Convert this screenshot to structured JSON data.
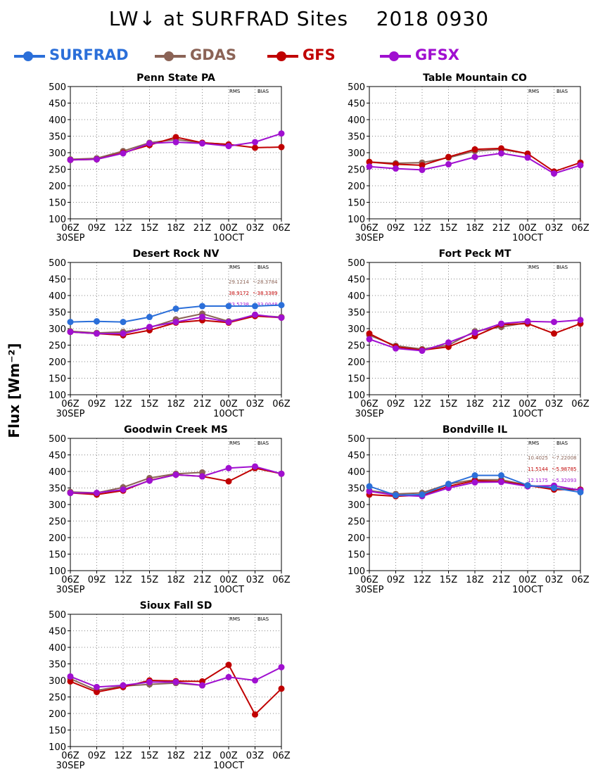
{
  "page": {
    "title": "LW↓ at SURFRAD Sites    2018 0930",
    "ylabel": "Flux [Wm⁻²]"
  },
  "legend": [
    {
      "name": "SURFRAD",
      "color": "#2b6fd9"
    },
    {
      "name": "GDAS",
      "color": "#8b6356"
    },
    {
      "name": "GFS",
      "color": "#c00000"
    },
    {
      "name": "GFSX",
      "color": "#a010d0"
    }
  ],
  "chart_data": [
    {
      "type": "line",
      "title": "Penn State PA",
      "categories": [
        "06Z\n30SEP",
        "09Z",
        "12Z",
        "15Z",
        "18Z",
        "21Z",
        "00Z\n10OCT",
        "03Z",
        "06Z"
      ],
      "ylim": [
        100,
        500
      ],
      "yticks": [
        100,
        150,
        200,
        250,
        300,
        350,
        400,
        450,
        500
      ],
      "grid": true,
      "stats_header": [
        "RMS",
        "BIAS"
      ],
      "stats": [],
      "series": [
        {
          "name": "SURFRAD",
          "values": [
            null,
            null,
            null,
            null,
            null,
            null,
            null,
            null,
            null
          ]
        },
        {
          "name": "GDAS",
          "values": [
            280,
            283,
            305,
            330,
            340,
            330,
            325,
            null,
            null
          ]
        },
        {
          "name": "GFS",
          "values": [
            278,
            280,
            300,
            323,
            347,
            330,
            325,
            315,
            317
          ]
        },
        {
          "name": "GFSX",
          "values": [
            278,
            280,
            298,
            328,
            332,
            328,
            320,
            332,
            358
          ]
        }
      ]
    },
    {
      "type": "line",
      "title": "Table Mountain CO",
      "categories": [
        "06Z\n30SEP",
        "09Z",
        "12Z",
        "15Z",
        "18Z",
        "21Z",
        "00Z\n10OCT",
        "03Z",
        "06Z"
      ],
      "ylim": [
        100,
        500
      ],
      "yticks": [
        100,
        150,
        200,
        250,
        300,
        350,
        400,
        450,
        500
      ],
      "grid": true,
      "stats_header": [
        "RMS",
        "BIAS"
      ],
      "stats": [],
      "series": [
        {
          "name": "SURFRAD",
          "values": [
            null,
            null,
            null,
            null,
            null,
            null,
            null,
            null,
            null
          ]
        },
        {
          "name": "GDAS",
          "values": [
            272,
            268,
            270,
            285,
            305,
            310,
            297,
            null,
            null
          ]
        },
        {
          "name": "GFS",
          "values": [
            272,
            265,
            262,
            287,
            310,
            313,
            297,
            243,
            270
          ]
        },
        {
          "name": "GFSX",
          "values": [
            258,
            252,
            248,
            265,
            287,
            298,
            285,
            237,
            262
          ]
        }
      ]
    },
    {
      "type": "line",
      "title": "Desert Rock NV",
      "categories": [
        "06Z\n30SEP",
        "09Z",
        "12Z",
        "15Z",
        "18Z",
        "21Z",
        "00Z\n10OCT",
        "03Z",
        "06Z"
      ],
      "ylim": [
        100,
        500
      ],
      "yticks": [
        100,
        150,
        200,
        250,
        300,
        350,
        400,
        450,
        500
      ],
      "grid": true,
      "stats_header": [
        "RMS",
        "BIAS"
      ],
      "stats": [
        {
          "series": "GDAS",
          "rms": "29.1214",
          "bias": "-28.3784"
        },
        {
          "series": "GFS",
          "rms": "38.9172",
          "bias": "-38.3389"
        },
        {
          "series": "GFSX",
          "rms": "33.5238",
          "bias": "-33.0048"
        }
      ],
      "series": [
        {
          "name": "SURFRAD",
          "values": [
            320,
            322,
            320,
            335,
            360,
            368,
            368,
            368,
            371
          ]
        },
        {
          "name": "GDAS",
          "values": [
            292,
            287,
            290,
            303,
            328,
            345,
            322,
            340,
            335
          ]
        },
        {
          "name": "GFS",
          "values": [
            290,
            285,
            280,
            295,
            318,
            325,
            318,
            338,
            333
          ]
        },
        {
          "name": "GFSX",
          "values": [
            290,
            285,
            285,
            305,
            320,
            335,
            320,
            342,
            333
          ]
        }
      ]
    },
    {
      "type": "line",
      "title": "Fort Peck MT",
      "categories": [
        "06Z\n30SEP",
        "09Z",
        "12Z",
        "15Z",
        "18Z",
        "21Z",
        "00Z\n10OCT",
        "03Z",
        "06Z"
      ],
      "ylim": [
        100,
        500
      ],
      "yticks": [
        100,
        150,
        200,
        250,
        300,
        350,
        400,
        450,
        500
      ],
      "grid": true,
      "stats_header": [
        "RMS",
        "BIAS"
      ],
      "stats": [],
      "series": [
        {
          "name": "SURFRAD",
          "values": [
            null,
            null,
            null,
            null,
            null,
            null,
            null,
            null,
            null
          ]
        },
        {
          "name": "GDAS",
          "values": [
            280,
            248,
            238,
            250,
            292,
            305,
            318,
            null,
            null
          ]
        },
        {
          "name": "GFS",
          "values": [
            285,
            245,
            235,
            245,
            277,
            312,
            315,
            285,
            315
          ]
        },
        {
          "name": "GFSX",
          "values": [
            268,
            240,
            233,
            258,
            288,
            315,
            322,
            320,
            326
          ]
        }
      ]
    },
    {
      "type": "line",
      "title": "Goodwin Creek MS",
      "categories": [
        "06Z\n30SEP",
        "09Z",
        "12Z",
        "15Z",
        "18Z",
        "21Z",
        "00Z\n10OCT",
        "03Z",
        "06Z"
      ],
      "ylim": [
        100,
        500
      ],
      "yticks": [
        100,
        150,
        200,
        250,
        300,
        350,
        400,
        450,
        500
      ],
      "grid": true,
      "stats_header": [
        "RMS",
        "BIAS"
      ],
      "stats": [],
      "series": [
        {
          "name": "SURFRAD",
          "values": [
            null,
            null,
            null,
            null,
            null,
            null,
            null,
            null,
            null
          ]
        },
        {
          "name": "GDAS",
          "values": [
            338,
            335,
            352,
            380,
            393,
            397,
            null,
            null,
            null
          ]
        },
        {
          "name": "GFS",
          "values": [
            335,
            330,
            342,
            373,
            390,
            385,
            370,
            410,
            393
          ]
        },
        {
          "name": "GFSX",
          "values": [
            335,
            335,
            345,
            372,
            390,
            385,
            410,
            415,
            393
          ]
        }
      ]
    },
    {
      "type": "line",
      "title": "Bondville IL",
      "categories": [
        "06Z\n30SEP",
        "09Z",
        "12Z",
        "15Z",
        "18Z",
        "21Z",
        "00Z\n10OCT",
        "03Z",
        "06Z"
      ],
      "ylim": [
        100,
        500
      ],
      "yticks": [
        100,
        150,
        200,
        250,
        300,
        350,
        400,
        450,
        500
      ],
      "grid": true,
      "stats_header": [
        "RMS",
        "BIAS"
      ],
      "stats": [
        {
          "series": "GDAS",
          "rms": "10.4025",
          "bias": "-7.22008"
        },
        {
          "series": "GFS",
          "rms": "11.5144",
          "bias": "-5.98785"
        },
        {
          "series": "GFSX",
          "rms": "12.1175",
          "bias": "-5.32093"
        }
      ],
      "series": [
        {
          "name": "SURFRAD",
          "values": [
            355,
            328,
            330,
            362,
            388,
            388,
            358,
            350,
            337
          ]
        },
        {
          "name": "GDAS",
          "values": [
            342,
            332,
            335,
            362,
            375,
            375,
            358,
            350,
            345
          ]
        },
        {
          "name": "GFS",
          "values": [
            330,
            325,
            328,
            355,
            372,
            370,
            358,
            345,
            345
          ]
        },
        {
          "name": "GFSX",
          "values": [
            340,
            328,
            325,
            350,
            367,
            368,
            355,
            357,
            343
          ]
        }
      ]
    },
    {
      "type": "line",
      "title": "Sioux Fall SD",
      "categories": [
        "06Z\n30SEP",
        "09Z",
        "12Z",
        "15Z",
        "18Z",
        "21Z",
        "00Z\n10OCT",
        "03Z",
        "06Z"
      ],
      "ylim": [
        100,
        500
      ],
      "yticks": [
        100,
        150,
        200,
        250,
        300,
        350,
        400,
        450,
        500
      ],
      "grid": true,
      "stats_header": [
        "RMS",
        "BIAS"
      ],
      "stats": [],
      "series": [
        {
          "name": "SURFRAD",
          "values": [
            null,
            null,
            null,
            null,
            null,
            null,
            null,
            null,
            null
          ]
        },
        {
          "name": "GDAS",
          "values": [
            305,
            270,
            283,
            288,
            292,
            285,
            null,
            null,
            null
          ]
        },
        {
          "name": "GFS",
          "values": [
            297,
            265,
            280,
            300,
            298,
            297,
            347,
            197,
            275
          ]
        },
        {
          "name": "GFSX",
          "values": [
            312,
            280,
            285,
            295,
            295,
            285,
            310,
            300,
            340
          ]
        }
      ]
    }
  ]
}
